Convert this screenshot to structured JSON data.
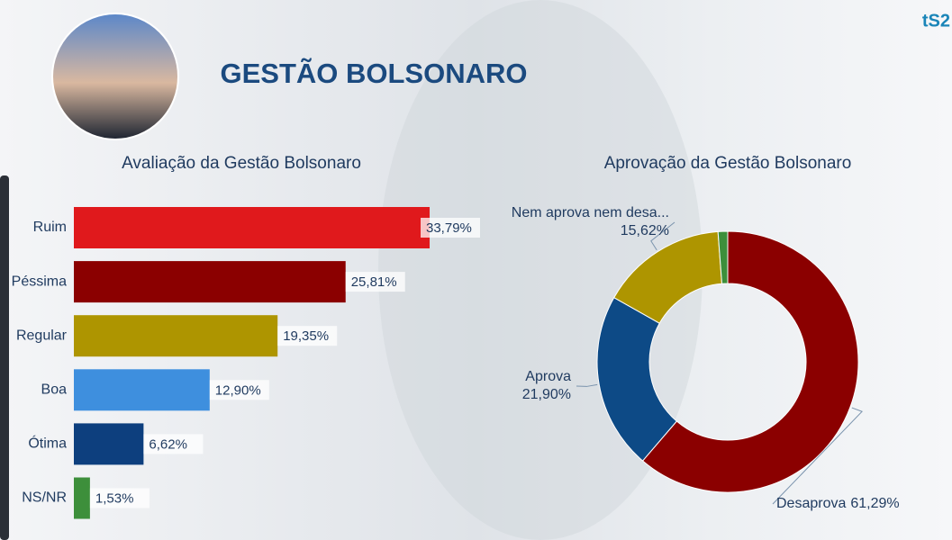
{
  "header": {
    "title": "GESTÃO BOLSONARO",
    "logo": "tS2"
  },
  "chart_data": [
    {
      "type": "hbar",
      "title": "Avaliação da Gestão Bolsonaro",
      "categories": [
        "Ruim",
        "Péssima",
        "Regular",
        "Boa",
        "Ótima",
        "NS/NR"
      ],
      "values": [
        33.79,
        25.81,
        19.35,
        12.9,
        6.62,
        1.53
      ],
      "value_labels": [
        "33,79%",
        "25,81%",
        "19,35%",
        "12,90%",
        "6,62%",
        "1,53%"
      ],
      "colors": [
        "#e0191c",
        "#8b0000",
        "#ae9500",
        "#3e8fde",
        "#0d3f7e",
        "#3d8f3b"
      ]
    },
    {
      "type": "donut",
      "title": "Aprovação da Gestão Bolsonaro",
      "categories": [
        "Desaprova",
        "Aprova",
        "Nem aprova nem desa...",
        null
      ],
      "values": [
        61.29,
        21.9,
        15.62,
        1.19
      ],
      "value_labels": [
        "61,29%",
        "21,90%",
        "15,62%",
        null
      ],
      "colors": [
        "#8b0000",
        "#0d4a86",
        "#ae9500",
        "#3d8f3b"
      ]
    }
  ]
}
